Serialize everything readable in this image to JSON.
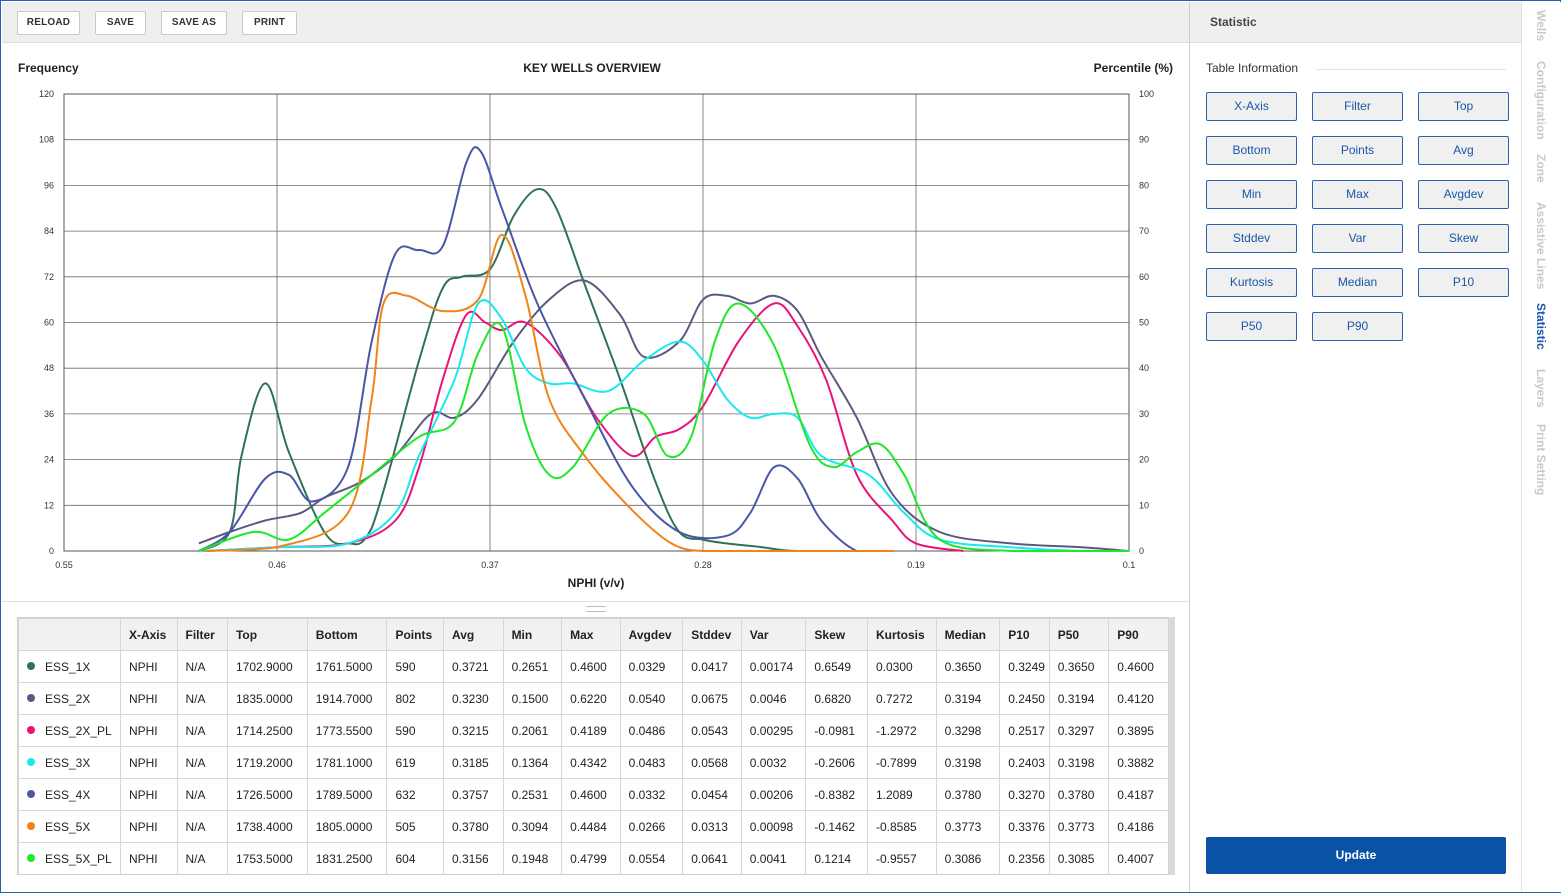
{
  "toolbar": {
    "buttons": [
      "RELOAD",
      "SAVE",
      "SAVE AS",
      "PRINT"
    ]
  },
  "chart_data": {
    "type": "line",
    "title": "KEY WELLS OVERVIEW",
    "xlabel": "NPHI (v/v)",
    "ylabel": "Frequency",
    "y2label": "Percentile (%)",
    "xlim": [
      0.55,
      0.1
    ],
    "ylim": [
      0,
      120
    ],
    "y2lim": [
      0,
      100
    ],
    "x_ticks": [
      "0.55",
      "0.46",
      "0.37",
      "0.28",
      "0.19",
      "0.1"
    ],
    "y_ticks": [
      "0",
      "12",
      "24",
      "36",
      "48",
      "60",
      "72",
      "84",
      "96",
      "108",
      "120"
    ],
    "y2_ticks": [
      "0",
      "10",
      "20",
      "30",
      "40",
      "50",
      "60",
      "70",
      "80",
      "90",
      "100"
    ],
    "grid": true,
    "series": [
      {
        "name": "ESS_1X",
        "color": "#2e7258",
        "x": [
          0.493,
          0.48,
          0.475,
          0.465,
          0.455,
          0.44,
          0.43,
          0.42,
          0.4,
          0.39,
          0.382,
          0.37,
          0.36,
          0.35,
          0.342,
          0.33,
          0.315,
          0.3,
          0.29,
          0.28,
          0.27,
          0.255,
          0.24,
          0.2
        ],
        "y": [
          0,
          5,
          25,
          44,
          26,
          5,
          2,
          6,
          50,
          69,
          72,
          74,
          88,
          95,
          90,
          70,
          45,
          18,
          5,
          3,
          2,
          1,
          0,
          0
        ]
      },
      {
        "name": "ESS_2X",
        "color": "#5a5a80",
        "x": [
          0.493,
          0.48,
          0.465,
          0.45,
          0.44,
          0.425,
          0.41,
          0.395,
          0.385,
          0.375,
          0.36,
          0.345,
          0.33,
          0.315,
          0.305,
          0.29,
          0.28,
          0.27,
          0.26,
          0.25,
          0.24,
          0.23,
          0.215,
          0.2,
          0.18,
          0.15,
          0.12,
          0.1
        ],
        "y": [
          2,
          5,
          8,
          10,
          14,
          18,
          25,
          36,
          35,
          40,
          55,
          66,
          71,
          62,
          51,
          55,
          66,
          67,
          65,
          67,
          63,
          51,
          35,
          15,
          5,
          2,
          1,
          0
        ]
      },
      {
        "name": "ESS_2X_PL",
        "color": "#e8147a",
        "x": [
          0.49,
          0.46,
          0.43,
          0.41,
          0.4,
          0.39,
          0.38,
          0.372,
          0.365,
          0.355,
          0.34,
          0.325,
          0.31,
          0.3,
          0.29,
          0.28,
          0.265,
          0.25,
          0.24,
          0.228,
          0.215,
          0.2,
          0.19,
          0.17
        ],
        "y": [
          0,
          1,
          2,
          8,
          22,
          45,
          62,
          60,
          58,
          60,
          51,
          35,
          25,
          30,
          32,
          38,
          55,
          65,
          59,
          45,
          20,
          8,
          2,
          0
        ]
      },
      {
        "name": "ESS_3X",
        "color": "#19e8ef",
        "x": [
          0.49,
          0.46,
          0.43,
          0.41,
          0.4,
          0.385,
          0.375,
          0.365,
          0.355,
          0.345,
          0.335,
          0.32,
          0.305,
          0.29,
          0.28,
          0.27,
          0.26,
          0.25,
          0.24,
          0.23,
          0.21,
          0.195,
          0.18,
          0.15,
          0.12,
          0.1
        ],
        "y": [
          0,
          1,
          2,
          10,
          25,
          45,
          65,
          61,
          48,
          44,
          44,
          42,
          50,
          55,
          50,
          40,
          35,
          36,
          35,
          25,
          20,
          10,
          3,
          1,
          0,
          0
        ]
      },
      {
        "name": "ESS_4X",
        "color": "#4a56a6",
        "x": [
          0.493,
          0.48,
          0.465,
          0.455,
          0.445,
          0.43,
          0.42,
          0.41,
          0.4,
          0.39,
          0.38,
          0.374,
          0.365,
          0.35,
          0.33,
          0.31,
          0.29,
          0.27,
          0.26,
          0.25,
          0.24,
          0.23,
          0.215,
          0.2
        ],
        "y": [
          0,
          5,
          19,
          20,
          13,
          22,
          55,
          78,
          79,
          80,
          102,
          105,
          90,
          65,
          40,
          17,
          5,
          4,
          10,
          22,
          19,
          8,
          0,
          0
        ]
      },
      {
        "name": "ESS_5X",
        "color": "#f0841a",
        "x": [
          0.49,
          0.46,
          0.43,
          0.42,
          0.415,
          0.405,
          0.39,
          0.375,
          0.365,
          0.355,
          0.345,
          0.33,
          0.315,
          0.3,
          0.29,
          0.28,
          0.27,
          0.25,
          0.2
        ],
        "y": [
          0,
          1,
          10,
          40,
          65,
          67,
          63,
          66,
          83,
          67,
          40,
          25,
          14,
          5,
          1,
          0,
          0,
          0,
          0
        ]
      },
      {
        "name": "ESS_5X_PL",
        "color": "#1ee82a",
        "x": [
          0.493,
          0.47,
          0.455,
          0.44,
          0.42,
          0.4,
          0.385,
          0.375,
          0.365,
          0.355,
          0.345,
          0.335,
          0.32,
          0.305,
          0.295,
          0.285,
          0.275,
          0.265,
          0.25,
          0.235,
          0.225,
          0.215,
          0.205,
          0.195,
          0.18,
          0.15,
          0.1
        ],
        "y": [
          0,
          5,
          3,
          10,
          20,
          30,
          34,
          52,
          59,
          33,
          20,
          22,
          36,
          36,
          25,
          30,
          55,
          65,
          54,
          28,
          22,
          26,
          28,
          20,
          3,
          0,
          0
        ]
      }
    ]
  },
  "table": {
    "columns": [
      "",
      "X-Axis",
      "Filter",
      "Top",
      "Bottom",
      "Points",
      "Avg",
      "Min",
      "Max",
      "Avgdev",
      "Stddev",
      "Var",
      "Skew",
      "Kurtosis",
      "Median",
      "P10",
      "P50",
      "P90"
    ],
    "rows": [
      {
        "name": "ESS_1X",
        "color": "#2e7258",
        "cells": [
          "NPHI",
          "N/A",
          "1702.9000",
          "1761.5000",
          "590",
          "0.3721",
          "0.2651",
          "0.4600",
          "0.0329",
          "0.0417",
          "0.00174",
          "0.6549",
          "0.0300",
          "0.3650",
          "0.3249",
          "0.3650",
          "0.4600"
        ]
      },
      {
        "name": "ESS_2X",
        "color": "#5a5a80",
        "cells": [
          "NPHI",
          "N/A",
          "1835.0000",
          "1914.7000",
          "802",
          "0.3230",
          "0.1500",
          "0.6220",
          "0.0540",
          "0.0675",
          "0.0046",
          "0.6820",
          "0.7272",
          "0.3194",
          "0.2450",
          "0.3194",
          "0.4120"
        ]
      },
      {
        "name": "ESS_2X_PL",
        "color": "#e8147a",
        "cells": [
          "NPHI",
          "N/A",
          "1714.2500",
          "1773.5500",
          "590",
          "0.3215",
          "0.2061",
          "0.4189",
          "0.0486",
          "0.0543",
          "0.00295",
          "-0.0981",
          "-1.2972",
          "0.3298",
          "0.2517",
          "0.3297",
          "0.3895"
        ]
      },
      {
        "name": "ESS_3X",
        "color": "#19e8ef",
        "cells": [
          "NPHI",
          "N/A",
          "1719.2000",
          "1781.1000",
          "619",
          "0.3185",
          "0.1364",
          "0.4342",
          "0.0483",
          "0.0568",
          "0.0032",
          "-0.2606",
          "-0.7899",
          "0.3198",
          "0.2403",
          "0.3198",
          "0.3882"
        ]
      },
      {
        "name": "ESS_4X",
        "color": "#4a56a6",
        "cells": [
          "NPHI",
          "N/A",
          "1726.5000",
          "1789.5000",
          "632",
          "0.3757",
          "0.2531",
          "0.4600",
          "0.0332",
          "0.0454",
          "0.00206",
          "-0.8382",
          "1.2089",
          "0.3780",
          "0.3270",
          "0.3780",
          "0.4187"
        ]
      },
      {
        "name": "ESS_5X",
        "color": "#f0841a",
        "cells": [
          "NPHI",
          "N/A",
          "1738.4000",
          "1805.0000",
          "505",
          "0.3780",
          "0.3094",
          "0.4484",
          "0.0266",
          "0.0313",
          "0.00098",
          "-0.1462",
          "-0.8585",
          "0.3773",
          "0.3376",
          "0.3773",
          "0.4186"
        ]
      },
      {
        "name": "ESS_5X_PL",
        "color": "#1ee82a",
        "cells": [
          "NPHI",
          "N/A",
          "1753.5000",
          "1831.2500",
          "604",
          "0.3156",
          "0.1948",
          "0.4799",
          "0.0554",
          "0.0641",
          "0.0041",
          "0.1214",
          "-0.9557",
          "0.3086",
          "0.2356",
          "0.3085",
          "0.4007"
        ]
      }
    ]
  },
  "panel": {
    "title": "Statistic",
    "section_label": "Table Information",
    "buttons": [
      "X-Axis",
      "Filter",
      "Top",
      "Bottom",
      "Points",
      "Avg",
      "Min",
      "Max",
      "Avgdev",
      "Stddev",
      "Var",
      "Skew",
      "Kurtosis",
      "Median",
      "P10",
      "P50",
      "P90"
    ],
    "update_label": "Update"
  },
  "side_tabs": {
    "items": [
      "Wells",
      "Configuration",
      "Zone",
      "Assistive Lines",
      "Statistic",
      "Layers",
      "Print Setting"
    ],
    "active": "Statistic"
  }
}
